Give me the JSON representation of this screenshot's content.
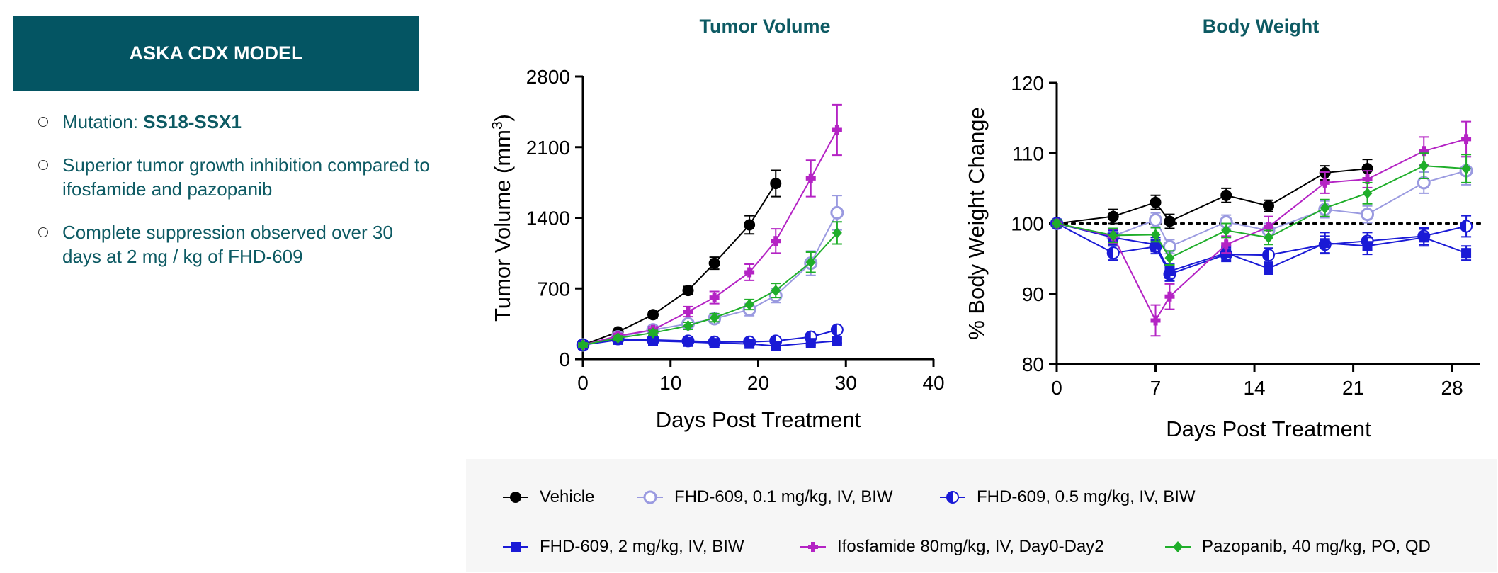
{
  "left_panel": {
    "header": "ASKA CDX MODEL",
    "bullets": {
      "b1_prefix": "Mutation: ",
      "b1_value": "SS18-SSX1",
      "b2": "Superior tumor growth inhibition compared to ifosfamide and pazopanib",
      "b3": "Complete suppression observed over 30 days at 2 mg / kg of FHD-609"
    }
  },
  "legend": {
    "vehicle": "Vehicle",
    "fhd01": "FHD-609, 0.1 mg/kg, IV, BIW",
    "fhd05": "FHD-609, 0.5 mg/kg, IV, BIW",
    "fhd2": "FHD-609, 2 mg/kg, IV, BIW",
    "ifos": "Ifosfamide 80mg/kg, IV, Day0-Day2",
    "pazo": "Pazopanib, 40 mg/kg, PO, QD"
  },
  "colors": {
    "vehicle": "#000000",
    "fhd01": "#9a9ae0",
    "fhd05": "#1a1ad6",
    "fhd2": "#1a1ad6",
    "ifos": "#b423c4",
    "pazo": "#1fae2a",
    "title": "#0d5a63",
    "header_bg": "#045563"
  },
  "chart_data": [
    {
      "type": "line",
      "title": "Tumor Volume",
      "xlabel": "Days Post Treatment",
      "ylabel": "Tumor Volume (mm",
      "ylabel_sup": "3",
      "ylabel_close": ")",
      "xlim": [
        0,
        40
      ],
      "ylim": [
        0,
        2800
      ],
      "xticks": [
        0,
        10,
        20,
        30,
        40
      ],
      "yticks": [
        0,
        700,
        1400,
        2100,
        2800
      ],
      "xtick_labels": [
        "0",
        "10",
        "20",
        "30",
        "40"
      ],
      "ytick_labels": [
        "0",
        "700",
        "1400",
        "2100",
        "2800"
      ],
      "series": [
        {
          "key": "vehicle",
          "marker": "circle",
          "x": [
            0,
            4,
            8,
            12,
            15,
            19,
            22
          ],
          "y": [
            140,
            270,
            440,
            680,
            950,
            1330,
            1740
          ],
          "err": [
            20,
            25,
            30,
            40,
            60,
            90,
            130
          ]
        },
        {
          "key": "fhd01",
          "marker": "open-circle",
          "x": [
            0,
            4,
            8,
            12,
            15,
            19,
            22,
            26,
            29
          ],
          "y": [
            140,
            220,
            290,
            350,
            400,
            490,
            630,
            950,
            1450
          ],
          "err": [
            20,
            20,
            30,
            40,
            40,
            60,
            70,
            120,
            170
          ]
        },
        {
          "key": "fhd05",
          "marker": "half-circle",
          "x": [
            0,
            4,
            8,
            12,
            15,
            19,
            22,
            26,
            29
          ],
          "y": [
            140,
            200,
            190,
            180,
            170,
            170,
            180,
            220,
            290
          ],
          "err": [
            15,
            15,
            15,
            15,
            15,
            15,
            20,
            25,
            30
          ]
        },
        {
          "key": "fhd2",
          "marker": "square",
          "x": [
            0,
            4,
            8,
            12,
            15,
            19,
            22,
            26,
            29
          ],
          "y": [
            140,
            190,
            180,
            170,
            160,
            150,
            130,
            160,
            180
          ],
          "err": [
            15,
            15,
            15,
            15,
            15,
            15,
            15,
            20,
            20
          ]
        },
        {
          "key": "ifos",
          "marker": "cross",
          "x": [
            0,
            4,
            8,
            12,
            15,
            19,
            22,
            26,
            29
          ],
          "y": [
            140,
            230,
            290,
            470,
            610,
            860,
            1170,
            1790,
            2270
          ],
          "err": [
            20,
            25,
            30,
            50,
            60,
            80,
            120,
            180,
            250
          ]
        },
        {
          "key": "pazo",
          "marker": "diamond",
          "x": [
            0,
            4,
            8,
            12,
            15,
            19,
            22,
            26,
            29
          ],
          "y": [
            140,
            210,
            260,
            330,
            410,
            540,
            680,
            960,
            1250
          ],
          "err": [
            20,
            20,
            25,
            35,
            40,
            50,
            70,
            100,
            110
          ]
        }
      ]
    },
    {
      "type": "line",
      "title": "Body Weight",
      "xlabel": "Days Post Treatment",
      "ylabel": "% Body Weight Change",
      "xlim": [
        0,
        30
      ],
      "ylim": [
        80,
        120
      ],
      "xticks": [
        0,
        7,
        14,
        21,
        28
      ],
      "yticks": [
        80,
        90,
        100,
        110,
        120
      ],
      "xtick_labels": [
        "0",
        "7",
        "14",
        "21",
        "28"
      ],
      "ytick_labels": [
        "80",
        "90",
        "100",
        "110",
        "120"
      ],
      "reference_line": 100,
      "series": [
        {
          "key": "vehicle",
          "marker": "circle",
          "x": [
            0,
            4,
            7,
            8,
            12,
            15,
            19,
            22
          ],
          "y": [
            100,
            101,
            103,
            100.3,
            104,
            102.5,
            107.2,
            107.8
          ],
          "err": [
            0.5,
            1,
            1,
            1,
            1,
            0.8,
            1,
            1.3
          ]
        },
        {
          "key": "fhd01",
          "marker": "open-circle",
          "x": [
            0,
            4,
            7,
            8,
            12,
            15,
            19,
            22,
            26,
            29
          ],
          "y": [
            100,
            98.2,
            100.5,
            96.7,
            100.2,
            99,
            102,
            101.3,
            105.8,
            107.5
          ],
          "err": [
            0.5,
            1,
            1,
            1,
            1,
            1,
            1.2,
            1.2,
            1.5,
            2
          ]
        },
        {
          "key": "fhd05",
          "marker": "half-circle",
          "x": [
            0,
            4,
            7,
            8,
            12,
            15,
            19,
            22,
            26,
            29
          ],
          "y": [
            100,
            95.8,
            96.7,
            92.8,
            95.6,
            95.5,
            97,
            97.5,
            98.2,
            99.6
          ],
          "err": [
            0.5,
            1,
            1,
            1,
            1,
            1,
            1.2,
            1.2,
            1.2,
            1.5
          ]
        },
        {
          "key": "fhd2",
          "marker": "square",
          "x": [
            0,
            4,
            7,
            8,
            12,
            15,
            19,
            22,
            26,
            29
          ],
          "y": [
            100,
            98,
            97,
            93.2,
            95.8,
            93.6,
            97.2,
            96.8,
            98,
            95.8
          ],
          "err": [
            0.5,
            1,
            1,
            1,
            1,
            0.8,
            1.5,
            1.2,
            1.2,
            1
          ]
        },
        {
          "key": "ifos",
          "marker": "cross",
          "x": [
            0,
            4,
            7,
            8,
            12,
            15,
            19,
            22,
            26,
            29
          ],
          "y": [
            100,
            98.2,
            86.2,
            89.6,
            97,
            99.5,
            105.8,
            106.3,
            110.3,
            112
          ],
          "err": [
            0.5,
            1,
            2.2,
            1.8,
            1.2,
            1.5,
            1.5,
            1.2,
            2,
            2.5
          ]
        },
        {
          "key": "pazo",
          "marker": "diamond",
          "x": [
            0,
            4,
            7,
            8,
            12,
            15,
            19,
            22,
            26,
            29
          ],
          "y": [
            100,
            98.3,
            98.4,
            95.1,
            99,
            98,
            102.2,
            104.3,
            108.2,
            107.8
          ],
          "err": [
            0.5,
            1,
            1,
            1,
            1,
            1,
            1.2,
            1.5,
            1.8,
            2
          ]
        }
      ]
    }
  ]
}
